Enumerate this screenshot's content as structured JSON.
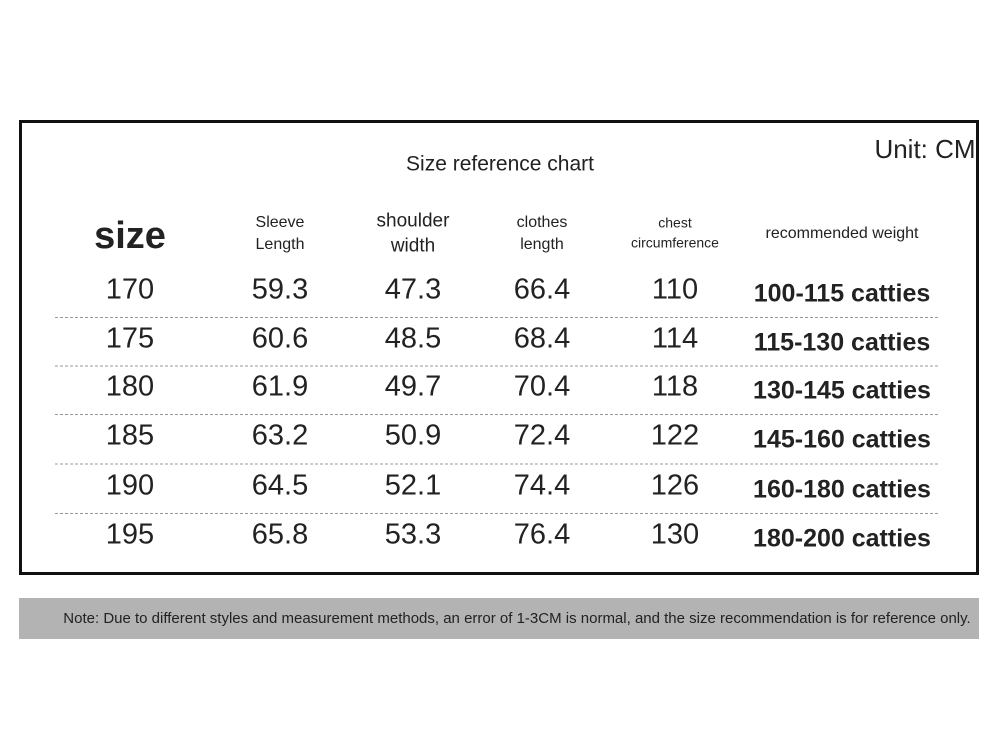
{
  "header": {
    "title": "Size reference chart",
    "unit": "Unit: CM"
  },
  "table": {
    "headers": [
      [
        "size"
      ],
      [
        "Sleeve",
        "Length"
      ],
      [
        "shoulder",
        "width"
      ],
      [
        "clothes",
        "length"
      ],
      [
        "chest",
        "circumference"
      ],
      [
        "recommended weight"
      ]
    ],
    "rows": [
      [
        "170",
        "59.3",
        "47.3",
        "66.4",
        "110",
        "100-115 catties"
      ],
      [
        "175",
        "60.6",
        "48.5",
        "68.4",
        "114",
        "115-130 catties"
      ],
      [
        "180",
        "61.9",
        "49.7",
        "70.4",
        "118",
        "130-145 catties"
      ],
      [
        "185",
        "63.2",
        "50.9",
        "72.4",
        "122",
        "145-160 catties"
      ],
      [
        "190",
        "64.5",
        "52.1",
        "74.4",
        "126",
        "160-180 catties"
      ],
      [
        "195",
        "65.8",
        "53.3",
        "76.4",
        "130",
        "180-200 catties"
      ]
    ]
  },
  "footer": {
    "note": "Note: Due to different styles and measurement methods, an error of 1-3CM is normal, and the size recommendation is for reference only."
  }
}
